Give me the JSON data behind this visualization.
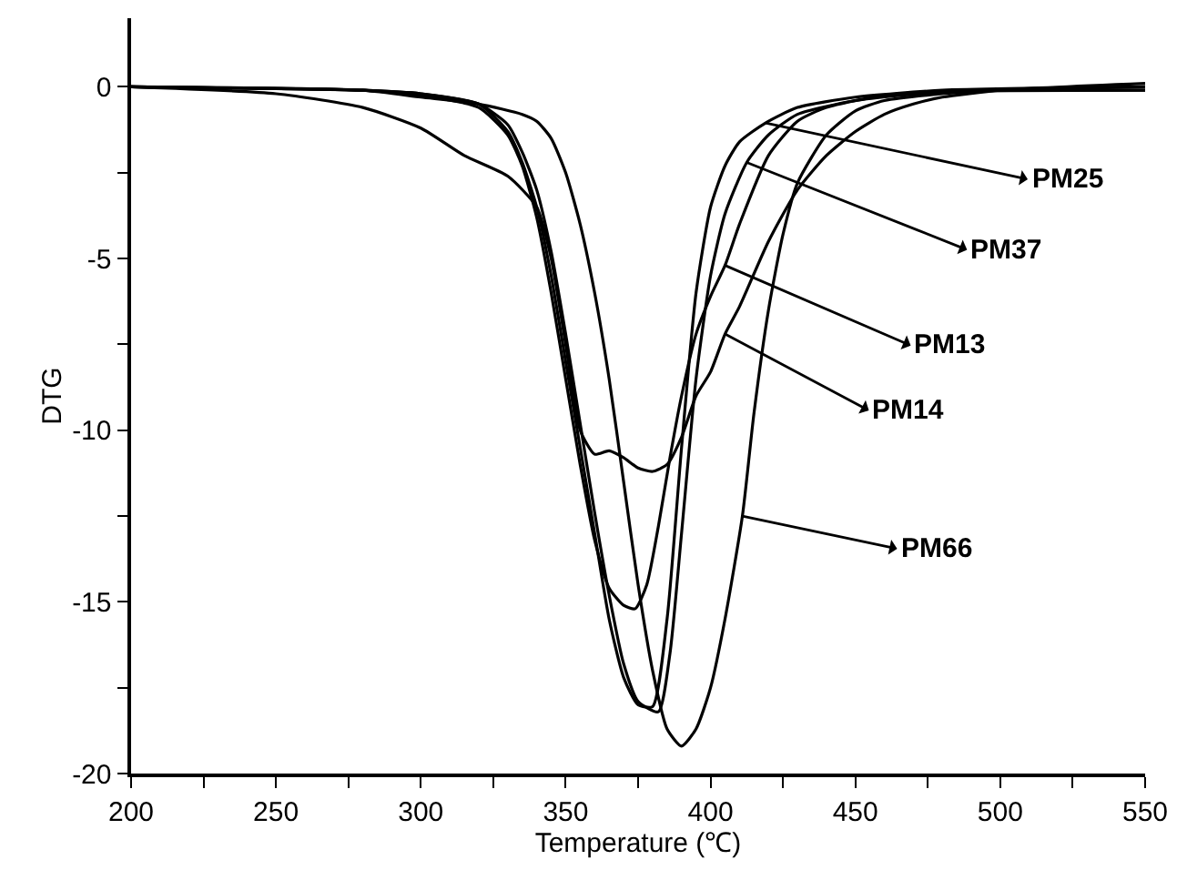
{
  "chart_data": {
    "type": "line",
    "xlabel": "Temperature (℃)",
    "ylabel": "DTG",
    "xlim": [
      200,
      550
    ],
    "ylim": [
      -20,
      2
    ],
    "xticks": [
      200,
      {
        "value": 225,
        "label": null
      },
      250,
      {
        "value": 275,
        "label": null
      },
      300,
      {
        "value": 325,
        "label": null
      },
      350,
      {
        "value": 375,
        "label": null
      },
      400,
      {
        "value": 425,
        "label": null
      },
      450,
      {
        "value": 475,
        "label": null
      },
      500,
      {
        "value": 525,
        "label": null
      },
      550
    ],
    "yticks": [
      -20,
      {
        "value": -17.5,
        "label": null
      },
      -15,
      {
        "value": -12.5,
        "label": null
      },
      -10,
      {
        "value": -7.5,
        "label": null
      },
      -5,
      {
        "value": -2.5,
        "label": null
      },
      0
    ],
    "legend": "right",
    "marker": "none",
    "line_style": "solid",
    "series": [
      {
        "name": "PM25",
        "color": "#000000",
        "x": [
          200,
          250,
          280,
          300,
          320,
          330,
          335,
          340,
          345,
          350,
          355,
          360,
          365,
          370,
          375,
          380,
          385,
          390,
          395,
          400,
          405,
          410,
          419,
          430,
          450,
          480,
          550
        ],
        "values": [
          0,
          -0.05,
          -0.1,
          -0.2,
          -0.5,
          -1.3,
          -2.2,
          -3.5,
          -5.5,
          -8,
          -10.5,
          -13,
          -15.5,
          -17.2,
          -18,
          -18.05,
          -15.5,
          -10.5,
          -6,
          -3.5,
          -2.3,
          -1.6,
          -1.05,
          -0.6,
          -0.3,
          -0.1,
          0
        ]
      },
      {
        "name": "PM37",
        "color": "#000000",
        "x": [
          200,
          250,
          280,
          300,
          320,
          330,
          335,
          340,
          345,
          350,
          355,
          360,
          365,
          370,
          375,
          382,
          386,
          390,
          395,
          400,
          405,
          412.5,
          420,
          430,
          450,
          480,
          550
        ],
        "values": [
          0,
          -0.05,
          -0.1,
          -0.2,
          -0.5,
          -1.1,
          -1.9,
          -3.0,
          -4.8,
          -7.2,
          -9.8,
          -12.4,
          -14.8,
          -16.8,
          -17.9,
          -18.2,
          -16.5,
          -13,
          -8.5,
          -5.5,
          -3.7,
          -2.2,
          -1.4,
          -0.8,
          -0.4,
          -0.15,
          -0.1
        ]
      },
      {
        "name": "PM13",
        "color": "#000000",
        "x": [
          200,
          250,
          280,
          300,
          320,
          330,
          335,
          340,
          345,
          350,
          355,
          360,
          365,
          370,
          374,
          378,
          382,
          386,
          390,
          395,
          400,
          405,
          410,
          420,
          430,
          440,
          460,
          500,
          550
        ],
        "values": [
          0,
          -0.05,
          -0.1,
          -0.25,
          -0.6,
          -1.4,
          -2.3,
          -3.8,
          -6,
          -8.5,
          -11,
          -13.2,
          -14.6,
          -15.1,
          -15.2,
          -14.5,
          -12.8,
          -10.8,
          -9,
          -7.2,
          -6.1,
          -5.2,
          -4.0,
          -2.0,
          -1.0,
          -0.6,
          -0.25,
          -0.1,
          0
        ]
      },
      {
        "name": "PM14",
        "color": "#000000",
        "x": [
          200,
          250,
          280,
          300,
          315,
          330,
          340,
          345,
          350,
          355,
          360,
          365,
          370,
          375,
          380,
          385,
          390,
          395,
          400,
          405,
          410,
          420,
          430,
          440,
          450,
          460,
          470,
          480,
          500,
          550
        ],
        "values": [
          0,
          -0.2,
          -0.6,
          -1.2,
          -2.0,
          -2.6,
          -3.5,
          -5,
          -7.5,
          -10,
          -10.7,
          -10.6,
          -10.8,
          -11.1,
          -11.2,
          -11.0,
          -10.2,
          -9.0,
          -8.3,
          -7.2,
          -6.4,
          -4.5,
          -3.0,
          -2.0,
          -1.3,
          -0.8,
          -0.5,
          -0.3,
          -0.1,
          0.1
        ]
      },
      {
        "name": "PM66",
        "color": "#000000",
        "x": [
          200,
          280,
          300,
          320,
          335,
          340,
          345,
          350,
          355,
          360,
          365,
          370,
          375,
          380,
          385,
          390,
          395,
          400,
          405,
          411,
          415,
          420,
          425,
          430,
          440,
          450,
          460,
          480,
          500,
          550
        ],
        "values": [
          0,
          -0.1,
          -0.3,
          -0.5,
          -0.8,
          -1.0,
          -1.5,
          -2.5,
          -4,
          -6,
          -8.5,
          -11.5,
          -14.5,
          -17,
          -18.7,
          -19.2,
          -18.7,
          -17.5,
          -15.5,
          -12.5,
          -9.5,
          -6.5,
          -4.3,
          -2.8,
          -1.4,
          -0.7,
          -0.4,
          -0.2,
          -0.1,
          -0.1
        ]
      }
    ]
  }
}
